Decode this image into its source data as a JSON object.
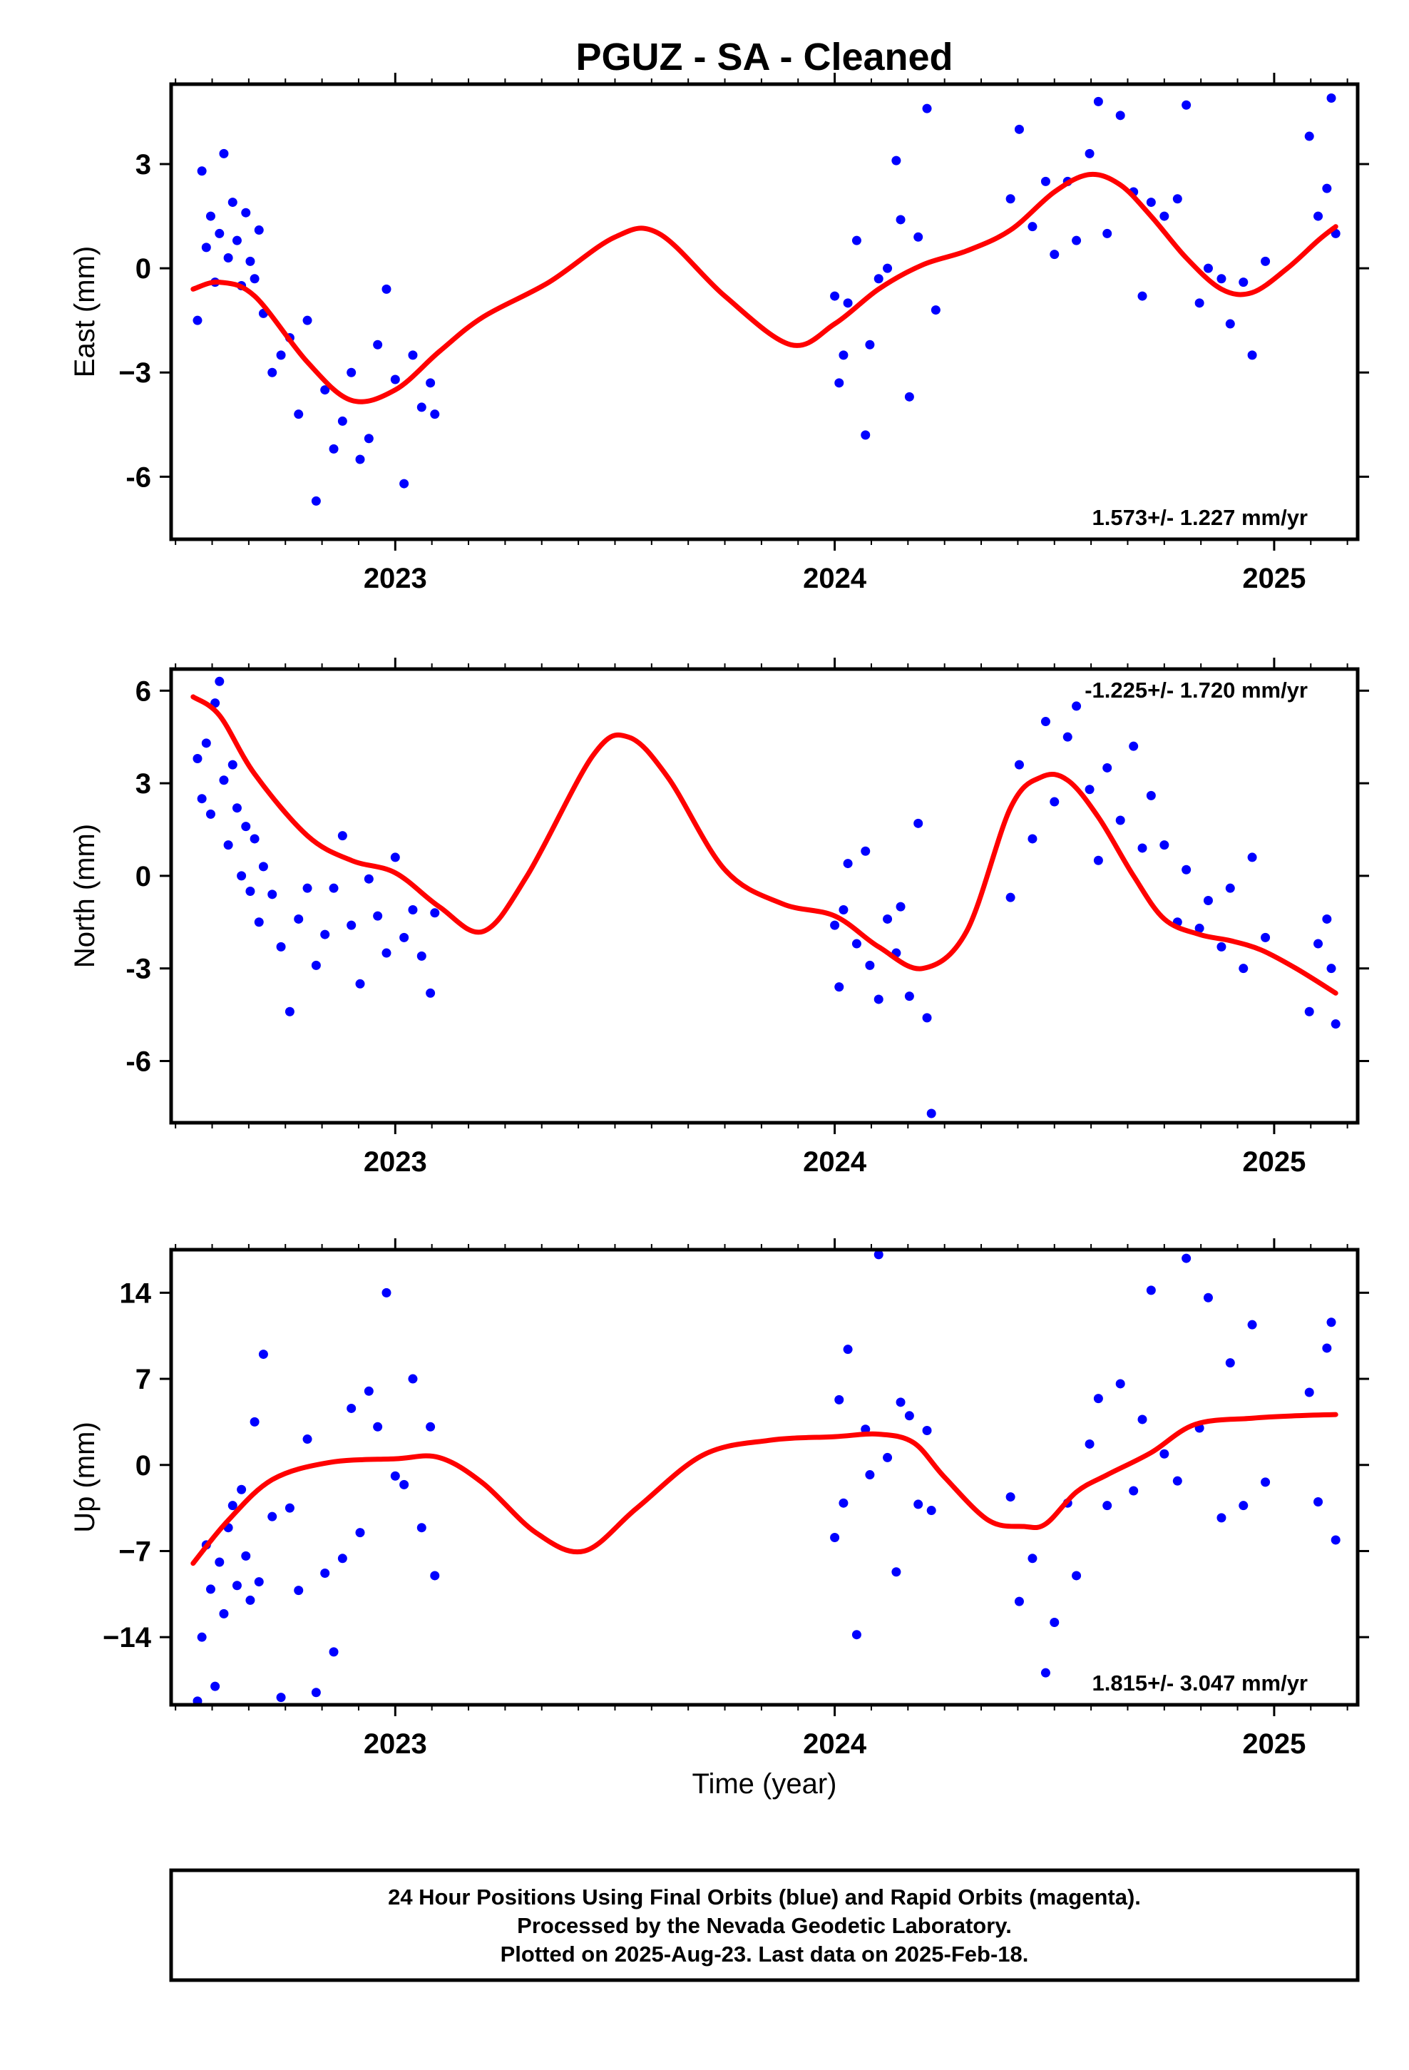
{
  "title": "PGUZ  - SA - Cleaned",
  "xlabel": "Time (year)",
  "footer": [
    "24 Hour Positions Using Final Orbits (blue) and Rapid Orbits (magenta).",
    "Processed by the Nevada Geodetic Laboratory.",
    "Plotted on 2025-Aug-23. Last data on 2025-Feb-18."
  ],
  "colors": {
    "points": "#0000ff",
    "fit": "#ff0000",
    "frame": "#000000"
  },
  "chart_data": [
    {
      "type": "scatter",
      "name": "east",
      "ylabel": "East (mm)",
      "rate": "1.573+/- 1.227 mm/yr",
      "rate_position": "bottom-right",
      "xlim": [
        2022.49,
        2025.19
      ],
      "ylim": [
        -7.8,
        5.3
      ],
      "xticks": [
        2023,
        2024,
        2025
      ],
      "yticks": [
        3,
        0,
        -3,
        -6
      ],
      "ytick_labels": [
        "3",
        "0",
        "−3",
        "-6"
      ],
      "series": [
        {
          "kind": "points",
          "x": [
            2022.55,
            2022.56,
            2022.57,
            2022.58,
            2022.59,
            2022.6,
            2022.61,
            2022.62,
            2022.63,
            2022.64,
            2022.65,
            2022.66,
            2022.67,
            2022.68,
            2022.69,
            2022.7,
            2022.72,
            2022.74,
            2022.76,
            2022.78,
            2022.8,
            2022.82,
            2022.84,
            2022.86,
            2022.88,
            2022.9,
            2022.92,
            2022.94,
            2022.96,
            2022.98,
            2023.0,
            2023.02,
            2023.04,
            2023.06,
            2023.08,
            2023.09,
            2024.0,
            2024.01,
            2024.02,
            2024.03,
            2024.05,
            2024.07,
            2024.08,
            2024.1,
            2024.12,
            2024.14,
            2024.15,
            2024.17,
            2024.19,
            2024.21,
            2024.23,
            2024.4,
            2024.42,
            2024.45,
            2024.48,
            2024.5,
            2024.53,
            2024.55,
            2024.58,
            2024.6,
            2024.62,
            2024.65,
            2024.68,
            2024.7,
            2024.72,
            2024.75,
            2024.78,
            2024.8,
            2024.83,
            2024.85,
            2024.88,
            2024.9,
            2024.93,
            2024.95,
            2024.98,
            2025.08,
            2025.1,
            2025.12,
            2025.13,
            2025.14
          ],
          "y": [
            -1.5,
            2.8,
            0.6,
            1.5,
            -0.4,
            1.0,
            3.3,
            0.3,
            1.9,
            0.8,
            -0.5,
            1.6,
            0.2,
            -0.3,
            1.1,
            -1.3,
            -3.0,
            -2.5,
            -2.0,
            -4.2,
            -1.5,
            -6.7,
            -3.5,
            -5.2,
            -4.4,
            -3.0,
            -5.5,
            -4.9,
            -2.2,
            -0.6,
            -3.2,
            -6.2,
            -2.5,
            -4.0,
            -3.3,
            -4.2,
            -0.8,
            -3.3,
            -2.5,
            -1.0,
            0.8,
            -4.8,
            -2.2,
            -0.3,
            0.0,
            3.1,
            1.4,
            -3.7,
            0.9,
            4.6,
            -1.2,
            2.0,
            4.0,
            1.2,
            2.5,
            0.4,
            2.5,
            0.8,
            3.3,
            4.8,
            1.0,
            4.4,
            2.2,
            -0.8,
            1.9,
            1.5,
            2.0,
            4.7,
            -1.0,
            0.0,
            -0.3,
            -1.6,
            -0.4,
            -2.5,
            0.2,
            3.8,
            1.5,
            2.3,
            4.9,
            1.0
          ]
        },
        {
          "kind": "fit",
          "x": [
            2022.54,
            2022.6,
            2022.68,
            2022.8,
            2022.9,
            2023.0,
            2023.1,
            2023.2,
            2023.35,
            2023.5,
            2023.6,
            2023.75,
            2023.9,
            2024.0,
            2024.1,
            2024.2,
            2024.3,
            2024.4,
            2024.5,
            2024.58,
            2024.65,
            2024.72,
            2024.8,
            2024.88,
            2024.95,
            2025.03,
            2025.1,
            2025.14
          ],
          "y": [
            -0.6,
            -0.4,
            -0.8,
            -2.7,
            -3.8,
            -3.5,
            -2.4,
            -1.4,
            -0.4,
            0.9,
            1.0,
            -0.8,
            -2.2,
            -1.6,
            -0.6,
            0.1,
            0.5,
            1.1,
            2.2,
            2.7,
            2.4,
            1.5,
            0.3,
            -0.6,
            -0.7,
            0.0,
            0.8,
            1.2
          ]
        }
      ]
    },
    {
      "type": "scatter",
      "name": "north",
      "ylabel": "North (mm)",
      "rate": "-1.225+/- 1.720 mm/yr",
      "rate_position": "top-right",
      "xlim": [
        2022.49,
        2025.19
      ],
      "ylim": [
        -8.0,
        6.7
      ],
      "xticks": [
        2023,
        2024,
        2025
      ],
      "yticks": [
        6,
        3,
        0,
        -3,
        -6
      ],
      "ytick_labels": [
        "6",
        "3",
        "0",
        "-3",
        "-6"
      ],
      "series": [
        {
          "kind": "points",
          "x": [
            2022.55,
            2022.56,
            2022.57,
            2022.58,
            2022.59,
            2022.6,
            2022.61,
            2022.62,
            2022.63,
            2022.64,
            2022.65,
            2022.66,
            2022.67,
            2022.68,
            2022.69,
            2022.7,
            2022.72,
            2022.74,
            2022.76,
            2022.78,
            2022.8,
            2022.82,
            2022.84,
            2022.86,
            2022.88,
            2022.9,
            2022.92,
            2022.94,
            2022.96,
            2022.98,
            2023.0,
            2023.02,
            2023.04,
            2023.06,
            2023.08,
            2023.09,
            2024.0,
            2024.01,
            2024.02,
            2024.03,
            2024.05,
            2024.07,
            2024.08,
            2024.1,
            2024.12,
            2024.14,
            2024.15,
            2024.17,
            2024.19,
            2024.21,
            2024.22,
            2024.4,
            2024.42,
            2024.45,
            2024.48,
            2024.5,
            2024.53,
            2024.55,
            2024.58,
            2024.6,
            2024.62,
            2024.65,
            2024.68,
            2024.7,
            2024.72,
            2024.75,
            2024.78,
            2024.8,
            2024.83,
            2024.85,
            2024.88,
            2024.9,
            2024.93,
            2024.95,
            2024.98,
            2025.08,
            2025.1,
            2025.12,
            2025.13,
            2025.14
          ],
          "y": [
            3.8,
            2.5,
            4.3,
            2.0,
            5.6,
            6.3,
            3.1,
            1.0,
            3.6,
            2.2,
            0.0,
            1.6,
            -0.5,
            1.2,
            -1.5,
            0.3,
            -0.6,
            -2.3,
            -4.4,
            -1.4,
            -0.4,
            -2.9,
            -1.9,
            -0.4,
            1.3,
            -1.6,
            -3.5,
            -0.1,
            -1.3,
            -2.5,
            0.6,
            -2.0,
            -1.1,
            -2.6,
            -3.8,
            -1.2,
            -1.6,
            -3.6,
            -1.1,
            0.4,
            -2.2,
            0.8,
            -2.9,
            -4.0,
            -1.4,
            -2.5,
            -1.0,
            -3.9,
            1.7,
            -4.6,
            -7.7,
            -0.7,
            3.6,
            1.2,
            5.0,
            2.4,
            4.5,
            5.5,
            2.8,
            0.5,
            3.5,
            1.8,
            4.2,
            0.9,
            2.6,
            1.0,
            -1.5,
            0.2,
            -1.7,
            -0.8,
            -2.3,
            -0.4,
            -3.0,
            0.6,
            -2.0,
            -4.4,
            -2.2,
            -1.4,
            -3.0,
            -4.8
          ]
        },
        {
          "kind": "fit",
          "x": [
            2022.54,
            2022.6,
            2022.68,
            2022.8,
            2022.9,
            2023.0,
            2023.1,
            2023.2,
            2023.3,
            2023.45,
            2023.53,
            2023.62,
            2023.75,
            2023.88,
            2024.0,
            2024.1,
            2024.2,
            2024.3,
            2024.4,
            2024.47,
            2024.53,
            2024.6,
            2024.68,
            2024.75,
            2024.83,
            2024.9,
            2024.97,
            2025.05,
            2025.14
          ],
          "y": [
            5.8,
            5.2,
            3.3,
            1.3,
            0.5,
            0.1,
            -1.0,
            -1.8,
            0.0,
            3.9,
            4.5,
            3.2,
            0.2,
            -0.9,
            -1.3,
            -2.3,
            -3.0,
            -1.8,
            2.2,
            3.2,
            3.1,
            1.9,
            0.0,
            -1.4,
            -1.9,
            -2.1,
            -2.4,
            -3.0,
            -3.8
          ]
        }
      ]
    },
    {
      "type": "scatter",
      "name": "up",
      "ylabel": "Up (mm)",
      "rate": "1.815+/- 3.047 mm/yr",
      "rate_position": "bottom-right",
      "xlim": [
        2022.49,
        2025.19
      ],
      "ylim": [
        -19.5,
        17.5
      ],
      "xticks": [
        2023,
        2024,
        2025
      ],
      "yticks": [
        14,
        7,
        0,
        -7,
        -14
      ],
      "ytick_labels": [
        "14",
        "7",
        "0",
        "−7",
        "−14"
      ],
      "series": [
        {
          "kind": "points",
          "x": [
            2022.55,
            2022.56,
            2022.57,
            2022.58,
            2022.59,
            2022.6,
            2022.61,
            2022.62,
            2022.63,
            2022.64,
            2022.65,
            2022.66,
            2022.67,
            2022.68,
            2022.69,
            2022.7,
            2022.72,
            2022.74,
            2022.76,
            2022.78,
            2022.8,
            2022.82,
            2022.84,
            2022.86,
            2022.88,
            2022.9,
            2022.92,
            2022.94,
            2022.96,
            2022.98,
            2023.0,
            2023.02,
            2023.04,
            2023.06,
            2023.08,
            2023.09,
            2024.0,
            2024.01,
            2024.02,
            2024.03,
            2024.05,
            2024.07,
            2024.08,
            2024.1,
            2024.12,
            2024.14,
            2024.15,
            2024.17,
            2024.19,
            2024.21,
            2024.22,
            2024.4,
            2024.42,
            2024.45,
            2024.48,
            2024.5,
            2024.53,
            2024.55,
            2024.58,
            2024.6,
            2024.62,
            2024.65,
            2024.68,
            2024.7,
            2024.72,
            2024.75,
            2024.78,
            2024.8,
            2024.83,
            2024.85,
            2024.88,
            2024.9,
            2024.93,
            2024.95,
            2024.98,
            2025.08,
            2025.1,
            2025.12,
            2025.13,
            2025.14
          ],
          "y": [
            -19.2,
            -14.0,
            -6.5,
            -10.1,
            -18.0,
            -7.9,
            -12.1,
            -5.1,
            -3.3,
            -9.8,
            -2.0,
            -7.4,
            -11.0,
            3.5,
            -9.5,
            9.0,
            -4.2,
            -18.9,
            -3.5,
            -10.2,
            2.1,
            -18.5,
            -8.8,
            -15.2,
            -7.6,
            4.6,
            -5.5,
            6.0,
            3.1,
            14.0,
            -0.9,
            -1.6,
            7.0,
            -5.1,
            3.1,
            -9.0,
            -5.9,
            5.3,
            -3.1,
            9.4,
            -13.8,
            2.9,
            -0.8,
            17.1,
            0.6,
            -8.7,
            5.1,
            4.0,
            -3.2,
            2.8,
            -3.7,
            -2.6,
            -11.1,
            -7.6,
            -16.9,
            -12.8,
            -3.1,
            -9.0,
            1.7,
            5.4,
            -3.3,
            6.6,
            -2.1,
            3.7,
            14.2,
            0.9,
            -1.3,
            16.8,
            3.0,
            13.6,
            -4.3,
            8.3,
            -3.3,
            11.4,
            -1.4,
            5.9,
            -3.0,
            9.5,
            11.6,
            -6.1
          ]
        },
        {
          "kind": "fit",
          "x": [
            2022.54,
            2022.62,
            2022.72,
            2022.85,
            2023.0,
            2023.1,
            2023.2,
            2023.32,
            2023.43,
            2023.55,
            2023.7,
            2023.85,
            2024.0,
            2024.1,
            2024.18,
            2024.25,
            2024.35,
            2024.43,
            2024.48,
            2024.55,
            2024.62,
            2024.72,
            2024.82,
            2024.95,
            2025.05,
            2025.14
          ],
          "y": [
            -8.0,
            -4.5,
            -1.2,
            0.2,
            0.5,
            0.6,
            -1.5,
            -5.5,
            -7.0,
            -3.5,
            0.8,
            2.0,
            2.3,
            2.5,
            1.8,
            -1.0,
            -4.5,
            -5.0,
            -4.8,
            -2.2,
            -0.8,
            1.0,
            3.3,
            3.8,
            4.0,
            4.1
          ]
        }
      ]
    }
  ]
}
